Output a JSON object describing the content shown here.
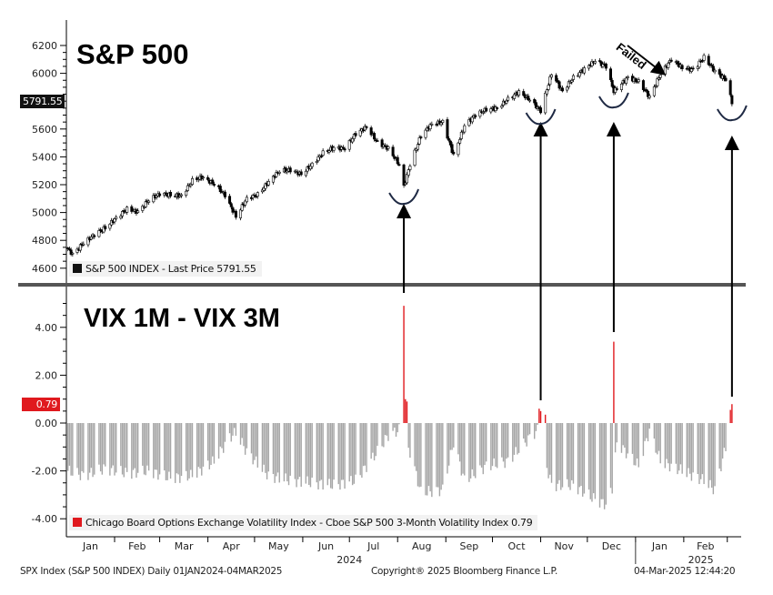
{
  "chart_data": [
    {
      "type": "candlestick",
      "title": "S&P 500",
      "legend": "S&P 500 INDEX - Last Price 5791.55",
      "last_price_tag": "5791.55",
      "ylim": [
        4550,
        6250
      ],
      "yticks": [
        4600,
        4800,
        5000,
        5200,
        5400,
        5600,
        5800,
        6000,
        6200
      ],
      "ytick_labels_hidden": [
        5800
      ],
      "color": "#000000",
      "series": {
        "dates": [
          "2024-01-02",
          "2024-01-05",
          "2024-01-12",
          "2024-01-19",
          "2024-01-26",
          "2024-02-02",
          "2024-02-09",
          "2024-02-16",
          "2024-02-23",
          "2024-03-01",
          "2024-03-08",
          "2024-03-15",
          "2024-03-22",
          "2024-03-28",
          "2024-04-05",
          "2024-04-12",
          "2024-04-19",
          "2024-04-26",
          "2024-05-03",
          "2024-05-10",
          "2024-05-17",
          "2024-05-24",
          "2024-05-31",
          "2024-06-07",
          "2024-06-14",
          "2024-06-21",
          "2024-06-28",
          "2024-07-05",
          "2024-07-12",
          "2024-07-19",
          "2024-07-26",
          "2024-08-02",
          "2024-08-05",
          "2024-08-09",
          "2024-08-16",
          "2024-08-23",
          "2024-08-30",
          "2024-09-06",
          "2024-09-13",
          "2024-09-20",
          "2024-09-27",
          "2024-10-04",
          "2024-10-11",
          "2024-10-18",
          "2024-10-25",
          "2024-11-01",
          "2024-11-08",
          "2024-11-15",
          "2024-11-22",
          "2024-11-29",
          "2024-12-06",
          "2024-12-13",
          "2024-12-18",
          "2024-12-27",
          "2025-01-03",
          "2025-01-10",
          "2025-01-17",
          "2025-01-24",
          "2025-01-31",
          "2025-02-07",
          "2025-02-14",
          "2025-02-21",
          "2025-02-28",
          "2025-03-04"
        ],
        "close": [
          4740,
          4700,
          4780,
          4840,
          4890,
          4960,
          5025,
          5005,
          5090,
          5135,
          5125,
          5120,
          5230,
          5255,
          5205,
          5125,
          4970,
          5100,
          5130,
          5220,
          5300,
          5305,
          5275,
          5345,
          5430,
          5465,
          5460,
          5565,
          5615,
          5505,
          5460,
          5345,
          5186,
          5345,
          5555,
          5635,
          5650,
          5410,
          5625,
          5700,
          5740,
          5750,
          5815,
          5865,
          5810,
          5730,
          6000,
          5870,
          5970,
          6030,
          6090,
          6050,
          5870,
          5970,
          5940,
          5830,
          5995,
          6100,
          6040,
          6025,
          6115,
          6015,
          5955,
          5791.55
        ]
      },
      "annotations": {
        "failed_label": "Failed",
        "arrow_dates": [
          "2024-08-05",
          "2024-11-01",
          "2024-12-18",
          "2025-03-04"
        ]
      }
    },
    {
      "type": "bar",
      "title": "VIX 1M - VIX 3M",
      "legend": "Chicago Board Options Exchange Volatility Index - Cboe S&P 500 3-Month Volatility Index 0.79",
      "last_value_tag": "0.79",
      "ylim": [
        -4.3,
        5.5
      ],
      "yticks": [
        -4,
        -2,
        0,
        2,
        4
      ],
      "ytick_labels": [
        "-4.00",
        "-2.00",
        "0.00",
        "2.00",
        "4.00"
      ],
      "colors": {
        "positive": "#e0191e",
        "negative": "#a6a6a6"
      },
      "series": {
        "dates": [
          "2024-01-02",
          "2024-01-12",
          "2024-01-26",
          "2024-02-09",
          "2024-02-23",
          "2024-03-08",
          "2024-03-22",
          "2024-04-05",
          "2024-04-15",
          "2024-04-19",
          "2024-04-26",
          "2024-05-10",
          "2024-05-24",
          "2024-06-07",
          "2024-06-21",
          "2024-07-05",
          "2024-07-19",
          "2024-07-26",
          "2024-08-02",
          "2024-08-09",
          "2024-08-16",
          "2024-08-30",
          "2024-09-06",
          "2024-09-13",
          "2024-09-27",
          "2024-10-11",
          "2024-10-25",
          "2024-10-30",
          "2024-11-08",
          "2024-11-22",
          "2024-12-06",
          "2024-12-13",
          "2024-12-17",
          "2024-12-20",
          "2025-01-03",
          "2025-01-10",
          "2025-01-17",
          "2025-01-31",
          "2025-02-14",
          "2025-02-21",
          "2025-02-28"
        ],
        "values": [
          -2.0,
          -2.2,
          -1.9,
          -2.1,
          -2.0,
          -2.3,
          -2.2,
          -1.6,
          -0.6,
          -0.4,
          -1.2,
          -2.2,
          -2.4,
          -2.5,
          -2.6,
          -2.4,
          -1.2,
          -0.5,
          -0.3,
          -1.2,
          -2.9,
          -2.8,
          -0.8,
          -2.4,
          -1.8,
          -1.6,
          -0.6,
          -0.3,
          -2.6,
          -2.6,
          -3.2,
          -3.4,
          -2.8,
          -0.8,
          -1.8,
          -0.3,
          -1.6,
          -2.0,
          -2.4,
          -2.8,
          -1.0
        ],
        "spikes": [
          {
            "date": "2024-08-05",
            "value": 4.9
          },
          {
            "date": "2024-08-06",
            "value": 1.0
          },
          {
            "date": "2024-08-07",
            "value": 0.9
          },
          {
            "date": "2024-10-31",
            "value": 0.6
          },
          {
            "date": "2024-11-01",
            "value": 0.5
          },
          {
            "date": "2024-11-04",
            "value": 0.35
          },
          {
            "date": "2024-12-18",
            "value": 3.4
          },
          {
            "date": "2025-03-03",
            "value": 0.55
          },
          {
            "date": "2025-03-04",
            "value": 0.79
          }
        ]
      }
    }
  ],
  "x_axis": {
    "months": [
      "Jan",
      "Feb",
      "Mar",
      "Apr",
      "May",
      "Jun",
      "Jul",
      "Aug",
      "Sep",
      "Oct",
      "Nov",
      "Dec",
      "Jan",
      "Feb"
    ],
    "years": [
      "2024",
      "2025"
    ]
  },
  "footer": {
    "left": "SPX Index (S&P 500 INDEX)  Daily 01JAN2024-04MAR2025",
    "center": "Copyright® 2025 Bloomberg Finance L.P.",
    "right": "04-Mar-2025 12:44:20"
  }
}
